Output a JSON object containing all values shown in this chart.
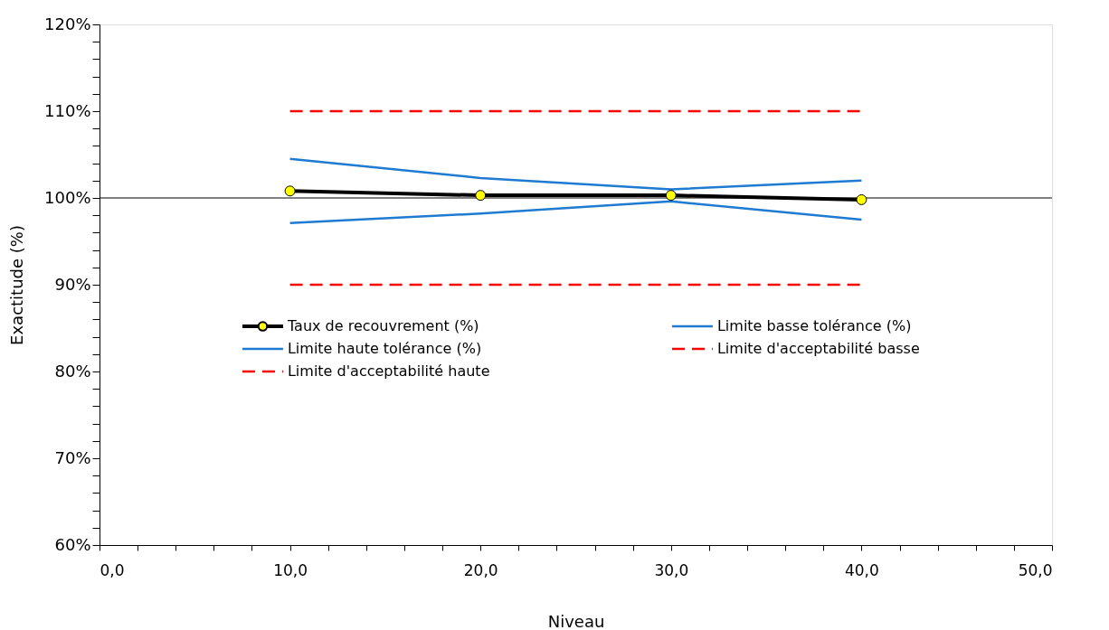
{
  "chart_data": {
    "type": "line",
    "xlabel": "Niveau",
    "ylabel": "Exactitude (%)",
    "x": [
      10,
      20,
      30,
      40
    ],
    "series": [
      {
        "name": "Taux de recouvrement (%)",
        "color": "#000000",
        "values": [
          100.8,
          100.3,
          100.3,
          99.8
        ],
        "marker": "circle",
        "line_style": "solid"
      },
      {
        "name": "Limite basse tolérance (%)",
        "color": "#1f7bd1",
        "values": [
          97.1,
          98.2,
          99.6,
          97.5
        ],
        "marker": "none",
        "line_style": "solid"
      },
      {
        "name": "Limite haute tolérance (%)",
        "color": "#1f7bd1",
        "values": [
          104.5,
          102.3,
          101.0,
          102.0
        ],
        "marker": "none",
        "line_style": "solid"
      },
      {
        "name": "Limite d'acceptabilité basse",
        "color": "#ff0000",
        "values": [
          90,
          90,
          90,
          90
        ],
        "marker": "none",
        "line_style": "dashed"
      },
      {
        "name": "Limite d'acceptabilité haute",
        "color": "#ff0000",
        "values": [
          110,
          110,
          110,
          110
        ],
        "marker": "none",
        "line_style": "dashed"
      }
    ],
    "xlim": [
      0,
      50
    ],
    "xticks": [
      {
        "value": 0,
        "label": "0,0"
      },
      {
        "value": 2,
        "label": null
      },
      {
        "value": 4,
        "label": null
      },
      {
        "value": 6,
        "label": null
      },
      {
        "value": 8,
        "label": null
      },
      {
        "value": 10,
        "label": "10,0"
      },
      {
        "value": 12,
        "label": null
      },
      {
        "value": 14,
        "label": null
      },
      {
        "value": 16,
        "label": null
      },
      {
        "value": 18,
        "label": null
      },
      {
        "value": 20,
        "label": "20,0"
      },
      {
        "value": 22,
        "label": null
      },
      {
        "value": 24,
        "label": null
      },
      {
        "value": 26,
        "label": null
      },
      {
        "value": 28,
        "label": null
      },
      {
        "value": 30,
        "label": "30,0"
      },
      {
        "value": 32,
        "label": null
      },
      {
        "value": 34,
        "label": null
      },
      {
        "value": 36,
        "label": null
      },
      {
        "value": 38,
        "label": null
      },
      {
        "value": 40,
        "label": "40,0"
      },
      {
        "value": 42,
        "label": null
      },
      {
        "value": 44,
        "label": null
      },
      {
        "value": 46,
        "label": null
      },
      {
        "value": 48,
        "label": null
      },
      {
        "value": 50,
        "label": "50,0"
      }
    ],
    "ylim": [
      60,
      120
    ],
    "yticks": [
      {
        "value": 60,
        "label": "60%"
      },
      {
        "value": 62,
        "label": null
      },
      {
        "value": 64,
        "label": null
      },
      {
        "value": 66,
        "label": null
      },
      {
        "value": 68,
        "label": null
      },
      {
        "value": 70,
        "label": "70%"
      },
      {
        "value": 72,
        "label": null
      },
      {
        "value": 74,
        "label": null
      },
      {
        "value": 76,
        "label": null
      },
      {
        "value": 78,
        "label": null
      },
      {
        "value": 80,
        "label": "80%"
      },
      {
        "value": 82,
        "label": null
      },
      {
        "value": 84,
        "label": null
      },
      {
        "value": 86,
        "label": null
      },
      {
        "value": 88,
        "label": null
      },
      {
        "value": 90,
        "label": "90%"
      },
      {
        "value": 92,
        "label": null
      },
      {
        "value": 94,
        "label": null
      },
      {
        "value": 96,
        "label": null
      },
      {
        "value": 98,
        "label": null
      },
      {
        "value": 100,
        "label": "100%"
      },
      {
        "value": 102,
        "label": null
      },
      {
        "value": 104,
        "label": null
      },
      {
        "value": 106,
        "label": null
      },
      {
        "value": 108,
        "label": null
      },
      {
        "value": 110,
        "label": "110%"
      },
      {
        "value": 112,
        "label": null
      },
      {
        "value": 114,
        "label": null
      },
      {
        "value": 116,
        "label": null
      },
      {
        "value": 118,
        "label": null
      },
      {
        "value": 120,
        "label": "120%"
      }
    ],
    "ref_lines": [
      {
        "axis": "y",
        "value": 100,
        "color": "#000000"
      }
    ],
    "grid": false,
    "legend": "center"
  }
}
